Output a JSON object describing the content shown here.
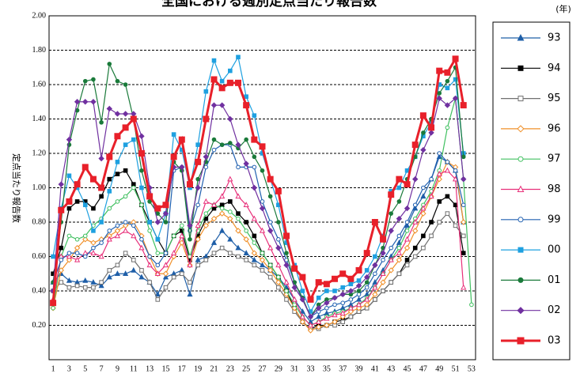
{
  "chart_data": {
    "type": "line",
    "title": "全国における週別定点当たり報告数",
    "legend_title": "(年)",
    "y_label": "定点当たり報告数",
    "x": [
      1,
      2,
      3,
      4,
      5,
      6,
      7,
      8,
      9,
      10,
      11,
      12,
      13,
      14,
      15,
      16,
      17,
      18,
      19,
      20,
      21,
      22,
      23,
      24,
      25,
      26,
      27,
      28,
      29,
      30,
      31,
      32,
      33,
      34,
      35,
      36,
      37,
      38,
      39,
      40,
      41,
      42,
      43,
      44,
      45,
      46,
      47,
      48,
      49,
      50,
      51,
      52,
      53
    ],
    "xlim": [
      0.5,
      53.5
    ],
    "xticks": [
      1,
      3,
      5,
      7,
      9,
      11,
      13,
      15,
      17,
      19,
      21,
      23,
      25,
      27,
      29,
      31,
      33,
      35,
      37,
      39,
      41,
      43,
      45,
      47,
      49,
      51,
      53
    ],
    "ylim": [
      0,
      2
    ],
    "yticks": [
      {
        "value": 0.2,
        "label": "0.20"
      },
      {
        "value": 0.4,
        "label": "0.40"
      },
      {
        "value": 0.6,
        "label": "0.60"
      },
      {
        "value": 0.8,
        "label": "0.80"
      },
      {
        "value": 1,
        "label": "1.00"
      },
      {
        "value": 1.2,
        "label": "1.20"
      },
      {
        "value": 1.4,
        "label": "1.40"
      },
      {
        "value": 1.6,
        "label": "1.60"
      },
      {
        "value": 1.8,
        "label": "1.80"
      },
      {
        "value": 2,
        "label": "2.00"
      }
    ],
    "grid": true,
    "legend": "right",
    "series": [
      {
        "name": "93",
        "color": "#1f5fa8",
        "marker": "triangle",
        "filled": true,
        "values": [
          0.45,
          0.5,
          0.46,
          0.45,
          0.46,
          0.45,
          0.43,
          0.48,
          0.5,
          0.5,
          0.52,
          0.48,
          0.45,
          0.38,
          0.48,
          0.5,
          0.52,
          0.38,
          0.58,
          0.6,
          0.68,
          0.75,
          0.7,
          0.65,
          0.62,
          0.58,
          0.55,
          0.52,
          0.48,
          0.42,
          0.35,
          0.28,
          0.22,
          0.25,
          0.27,
          0.28,
          0.3,
          0.32,
          0.35,
          0.38,
          0.45,
          0.52,
          0.6,
          0.68,
          0.78,
          0.88,
          0.95,
          1.05,
          1.18,
          1.15,
          1.1,
          0.8,
          null
        ]
      },
      {
        "name": "94",
        "color": "#000000",
        "marker": "square",
        "filled": true,
        "values": [
          0.5,
          0.65,
          0.88,
          0.92,
          0.92,
          0.88,
          0.95,
          1.05,
          1.08,
          1.1,
          1.02,
          0.9,
          0.8,
          0.7,
          0.62,
          0.72,
          0.75,
          0.58,
          0.72,
          0.82,
          0.88,
          0.9,
          0.92,
          0.85,
          0.8,
          0.72,
          0.62,
          0.55,
          0.48,
          0.4,
          0.3,
          0.22,
          0.18,
          0.2,
          0.2,
          0.22,
          0.23,
          0.25,
          0.28,
          0.3,
          0.35,
          0.4,
          0.45,
          0.5,
          0.58,
          0.65,
          0.72,
          0.8,
          0.92,
          0.95,
          0.9,
          0.62,
          null
        ]
      },
      {
        "name": "95",
        "color": "#707070",
        "marker": "square",
        "filled": false,
        "values": [
          0.4,
          0.45,
          0.42,
          0.43,
          0.42,
          0.42,
          0.45,
          0.52,
          0.55,
          0.62,
          0.58,
          0.52,
          0.45,
          0.35,
          0.42,
          0.48,
          0.5,
          0.45,
          0.55,
          0.58,
          0.62,
          0.65,
          0.62,
          0.6,
          0.58,
          0.55,
          0.52,
          0.48,
          0.42,
          0.35,
          0.28,
          0.22,
          0.18,
          0.18,
          0.2,
          0.2,
          0.22,
          0.25,
          0.28,
          0.3,
          0.35,
          0.4,
          0.45,
          0.5,
          0.55,
          0.6,
          0.65,
          0.72,
          0.8,
          0.85,
          0.78,
          0.72,
          null
        ]
      },
      {
        "name": "96",
        "color": "#f0902a",
        "marker": "diamond",
        "filled": false,
        "values": [
          0.3,
          0.52,
          0.58,
          0.65,
          0.7,
          0.68,
          0.7,
          0.72,
          0.75,
          0.78,
          0.8,
          0.72,
          0.6,
          0.5,
          0.5,
          0.6,
          0.68,
          0.55,
          0.7,
          0.78,
          0.82,
          0.85,
          0.82,
          0.75,
          0.7,
          0.62,
          0.58,
          0.52,
          0.45,
          0.38,
          0.3,
          0.22,
          0.17,
          0.19,
          0.2,
          0.22,
          0.25,
          0.28,
          0.3,
          0.32,
          0.38,
          0.45,
          0.52,
          0.58,
          0.65,
          0.75,
          0.85,
          0.95,
          1.05,
          1.15,
          1.12,
          0.8,
          null
        ]
      },
      {
        "name": "97",
        "color": "#40c060",
        "marker": "circle",
        "filled": false,
        "values": [
          0.3,
          0.6,
          0.72,
          0.7,
          0.72,
          0.78,
          0.82,
          0.88,
          0.92,
          0.95,
          1.0,
          0.9,
          0.75,
          0.62,
          0.62,
          0.72,
          0.78,
          0.6,
          0.75,
          0.85,
          0.9,
          0.88,
          0.86,
          0.82,
          0.75,
          0.68,
          0.62,
          0.55,
          0.48,
          0.4,
          0.32,
          0.25,
          0.2,
          0.22,
          0.25,
          0.27,
          0.28,
          0.3,
          0.32,
          0.36,
          0.42,
          0.5,
          0.58,
          0.65,
          0.75,
          0.82,
          0.9,
          0.98,
          1.1,
          1.35,
          1.52,
          1.05,
          0.32
        ]
      },
      {
        "name": "98",
        "color": "#e8307a",
        "marker": "triangle",
        "filled": false,
        "values": [
          0.35,
          0.6,
          0.6,
          0.58,
          0.62,
          0.62,
          0.6,
          0.7,
          0.72,
          0.75,
          0.72,
          0.65,
          0.55,
          0.5,
          0.55,
          0.62,
          0.72,
          0.55,
          0.78,
          0.92,
          0.9,
          0.95,
          1.05,
          0.95,
          0.9,
          0.82,
          0.75,
          0.65,
          0.55,
          0.45,
          0.35,
          0.25,
          0.2,
          0.22,
          0.24,
          0.26,
          0.27,
          0.3,
          0.32,
          0.35,
          0.42,
          0.5,
          0.58,
          0.62,
          0.7,
          0.8,
          0.88,
          0.95,
          1.08,
          1.1,
          1.05,
          0.42,
          null
        ]
      },
      {
        "name": "99",
        "color": "#2060b0",
        "marker": "circle",
        "filled": false,
        "values": [
          0.45,
          0.58,
          0.62,
          0.62,
          0.6,
          0.65,
          0.68,
          0.75,
          0.78,
          0.8,
          0.78,
          0.7,
          0.6,
          0.55,
          0.62,
          1.1,
          1.12,
          0.75,
          0.9,
          1.12,
          1.22,
          1.25,
          1.25,
          1.12,
          1.12,
          1.12,
          0.92,
          0.8,
          0.7,
          0.58,
          0.45,
          0.35,
          0.25,
          0.28,
          0.3,
          0.32,
          0.33,
          0.35,
          0.38,
          0.42,
          0.5,
          0.58,
          0.65,
          0.72,
          0.8,
          0.9,
          1.0,
          1.05,
          1.2,
          1.15,
          1.1,
          0.9,
          null
        ]
      },
      {
        "name": "00",
        "color": "#1ea0e0",
        "marker": "square",
        "filled": true,
        "values": [
          0.6,
          0.88,
          1.07,
          1.0,
          0.9,
          0.75,
          0.8,
          0.98,
          1.15,
          1.25,
          1.28,
          1.0,
          0.8,
          0.7,
          0.85,
          1.31,
          1.22,
          1.0,
          1.25,
          1.56,
          1.74,
          1.62,
          1.68,
          1.76,
          1.53,
          1.42,
          1.2,
          1.05,
          0.9,
          0.68,
          0.55,
          0.4,
          0.28,
          0.36,
          0.4,
          0.4,
          0.42,
          0.44,
          0.46,
          0.52,
          0.6,
          0.72,
          0.98,
          1.0,
          1.1,
          1.18,
          1.3,
          1.38,
          1.6,
          1.58,
          1.63,
          1.2,
          null
        ]
      },
      {
        "name": "01",
        "color": "#1a7a3a",
        "marker": "circle",
        "filled": true,
        "values": [
          0.45,
          0.8,
          1.25,
          1.45,
          1.62,
          1.63,
          1.38,
          1.72,
          1.62,
          1.6,
          1.4,
          1.1,
          0.92,
          0.85,
          0.8,
          1.15,
          1.1,
          0.7,
          1.05,
          1.15,
          1.28,
          1.25,
          1.26,
          1.23,
          1.28,
          1.18,
          1.1,
          0.95,
          0.8,
          0.62,
          0.45,
          0.36,
          0.25,
          0.32,
          0.35,
          0.36,
          0.38,
          0.38,
          0.4,
          0.45,
          0.55,
          0.65,
          0.85,
          0.92,
          1.05,
          1.18,
          1.32,
          1.4,
          1.55,
          1.62,
          1.7,
          1.18,
          null
        ]
      },
      {
        "name": "02",
        "color": "#7030a0",
        "marker": "diamond",
        "filled": true,
        "values": [
          0.4,
          1.02,
          1.28,
          1.5,
          1.5,
          1.5,
          1.17,
          1.46,
          1.43,
          1.43,
          1.43,
          1.3,
          1.0,
          0.8,
          0.85,
          1.12,
          1.12,
          0.78,
          1.0,
          1.18,
          1.48,
          1.48,
          1.4,
          1.25,
          1.14,
          1.0,
          0.88,
          0.75,
          0.65,
          0.55,
          0.42,
          0.35,
          0.25,
          0.3,
          0.33,
          0.36,
          0.38,
          0.4,
          0.43,
          0.48,
          0.55,
          0.62,
          0.75,
          0.82,
          0.88,
          1.05,
          1.22,
          1.32,
          1.52,
          1.48,
          1.52,
          1.05,
          null
        ]
      },
      {
        "name": "03",
        "color": "#e8202a",
        "marker": "square",
        "filled": true,
        "emphasis": true,
        "values": [
          0.33,
          0.87,
          0.92,
          1.02,
          1.12,
          1.05,
          1.0,
          1.18,
          1.3,
          1.35,
          1.4,
          1.2,
          0.95,
          0.88,
          0.9,
          1.18,
          1.28,
          1.02,
          1.15,
          1.4,
          1.63,
          1.58,
          1.61,
          1.61,
          1.48,
          1.28,
          1.24,
          1.05,
          0.98,
          0.72,
          0.53,
          0.48,
          0.35,
          0.45,
          0.44,
          0.47,
          0.5,
          0.47,
          0.52,
          0.62,
          0.8,
          0.7,
          0.96,
          1.05,
          1.02,
          1.25,
          1.42,
          1.35,
          1.68,
          1.67,
          1.75,
          1.48,
          null
        ]
      }
    ]
  }
}
